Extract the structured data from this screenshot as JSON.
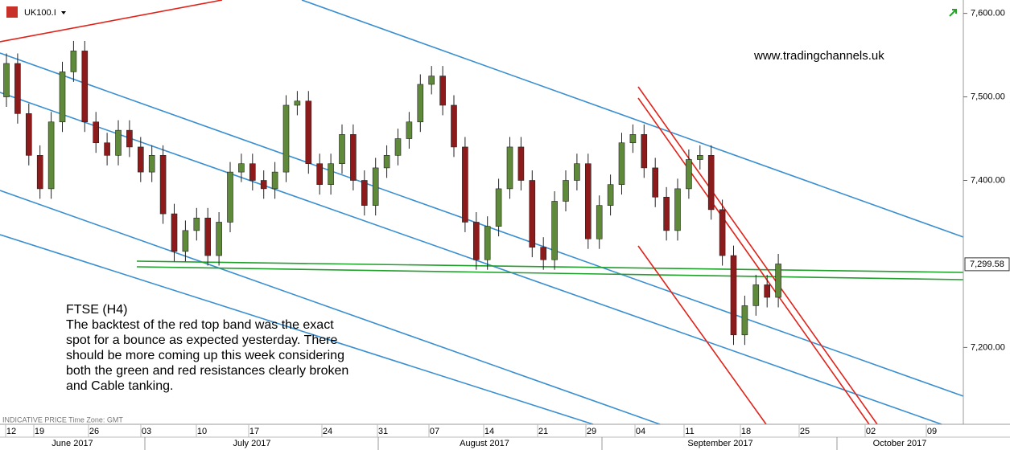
{
  "chart_data": {
    "type": "candlestick",
    "symbol": "UK100.I",
    "watermark": "www.tradingchannels.uk",
    "footer_note": "INDICATIVE PRICE   Time Zone: GMT",
    "annotation": [
      "FTSE (H4)",
      "The backtest of the red top band was the exact",
      "spot for a bounce as expected yesterday. There",
      "should be more coming up this week considering",
      "both the green and red resistances clearly broken",
      "and Cable tanking."
    ],
    "up_color": "#5f8a3a",
    "down_color": "#8e1b1b",
    "ylim": [
      7108,
      7616
    ],
    "yticks": [
      {
        "value": 7200,
        "label": "7,200.00"
      },
      {
        "value": 7400,
        "label": "7,400.00"
      },
      {
        "value": 7500,
        "label": "7,500.00"
      },
      {
        "value": 7600,
        "label": "7,600.00"
      }
    ],
    "current_price": {
      "value": 7299.58,
      "label": "7,299.58"
    },
    "day_labels": [
      "12",
      "19",
      "26",
      "03",
      "10",
      "17",
      "24",
      "31",
      "07",
      "14",
      "21",
      "29",
      "04",
      "11",
      "18",
      "25",
      "02",
      "09"
    ],
    "month_labels": [
      "June 2017",
      "July 2017",
      "August 2017",
      "September 2017",
      "October 2017"
    ],
    "open": [
      7500,
      7540,
      7480,
      7430,
      7390,
      7470,
      7530,
      7555,
      7470,
      7445,
      7430,
      7460,
      7440,
      7410,
      7430,
      7360,
      7315,
      7340,
      7355,
      7310,
      7350,
      7410,
      7420,
      7400,
      7390,
      7410,
      7490,
      7495,
      7420,
      7395,
      7420,
      7455,
      7400,
      7370,
      7415,
      7430,
      7450,
      7470,
      7515,
      7525,
      7490,
      7440,
      7350,
      7305,
      7345,
      7390,
      7440,
      7400,
      7320,
      7305,
      7375,
      7400,
      7420,
      7330,
      7370,
      7395,
      7445,
      7455,
      7415,
      7380,
      7340,
      7390,
      7425,
      7430,
      7365,
      7310,
      7215,
      7250,
      7275,
      7260
    ],
    "high": [
      7552,
      7552,
      7492,
      7442,
      7482,
      7542,
      7567,
      7567,
      7482,
      7457,
      7472,
      7472,
      7452,
      7442,
      7442,
      7372,
      7352,
      7367,
      7367,
      7362,
      7422,
      7432,
      7432,
      7412,
      7422,
      7502,
      7507,
      7507,
      7432,
      7432,
      7467,
      7467,
      7412,
      7427,
      7442,
      7462,
      7482,
      7527,
      7537,
      7537,
      7502,
      7452,
      7362,
      7357,
      7402,
      7452,
      7452,
      7412,
      7332,
      7387,
      7412,
      7432,
      7432,
      7382,
      7407,
      7457,
      7467,
      7467,
      7427,
      7392,
      7402,
      7437,
      7442,
      7442,
      7377,
      7322,
      7262,
      7287,
      7287,
      7312
    ],
    "low": [
      7488,
      7468,
      7418,
      7378,
      7378,
      7458,
      7518,
      7458,
      7433,
      7418,
      7418,
      7428,
      7398,
      7398,
      7348,
      7303,
      7303,
      7328,
      7298,
      7298,
      7338,
      7398,
      7388,
      7378,
      7378,
      7398,
      7478,
      7408,
      7383,
      7383,
      7408,
      7388,
      7358,
      7358,
      7403,
      7418,
      7438,
      7458,
      7503,
      7478,
      7428,
      7338,
      7293,
      7293,
      7333,
      7378,
      7388,
      7308,
      7293,
      7293,
      7363,
      7388,
      7318,
      7318,
      7358,
      7383,
      7433,
      7403,
      7368,
      7328,
      7328,
      7378,
      7413,
      7353,
      7298,
      7203,
      7203,
      7238,
      7248,
      7248
    ],
    "close": [
      7540,
      7480,
      7430,
      7390,
      7470,
      7530,
      7555,
      7470,
      7445,
      7430,
      7460,
      7440,
      7410,
      7430,
      7360,
      7315,
      7340,
      7355,
      7310,
      7350,
      7410,
      7420,
      7400,
      7390,
      7410,
      7490,
      7495,
      7420,
      7395,
      7420,
      7455,
      7400,
      7370,
      7415,
      7430,
      7450,
      7470,
      7515,
      7525,
      7490,
      7440,
      7350,
      7305,
      7345,
      7390,
      7440,
      7400,
      7320,
      7305,
      7375,
      7400,
      7420,
      7330,
      7370,
      7395,
      7445,
      7455,
      7415,
      7380,
      7340,
      7390,
      7425,
      7430,
      7365,
      7310,
      7215,
      7250,
      7275,
      7260,
      7300
    ]
  }
}
